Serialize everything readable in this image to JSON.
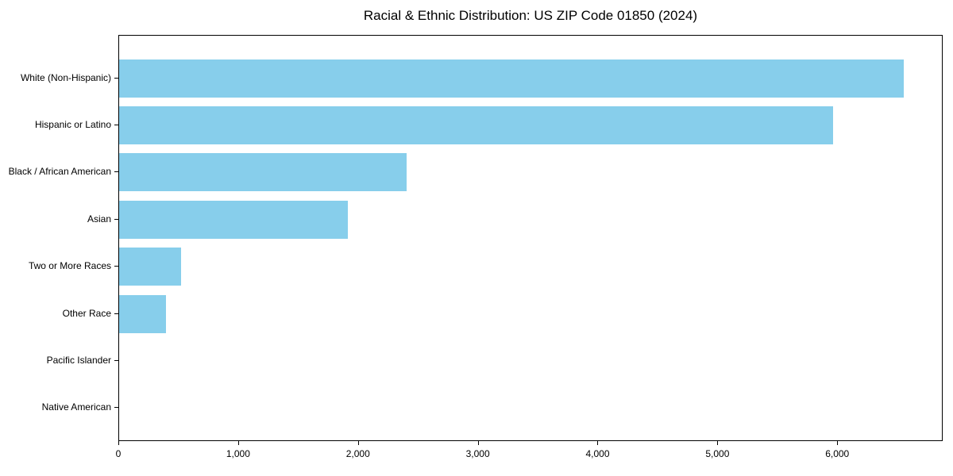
{
  "title": "Racial & Ethnic Distribution: US ZIP Code 01850 (2024)",
  "chart_data": {
    "type": "bar",
    "orientation": "horizontal",
    "title": "Racial & Ethnic Distribution: US ZIP Code 01850 (2024)",
    "xlabel": "",
    "ylabel": "",
    "categories": [
      "White (Non-Hispanic)",
      "Hispanic or Latino",
      "Black / African American",
      "Asian",
      "Two or More Races",
      "Other Race",
      "Pacific Islander",
      "Native American"
    ],
    "values": [
      6550,
      5960,
      2400,
      1910,
      520,
      390,
      0,
      0
    ],
    "xlim": [
      0,
      6880
    ],
    "x_ticks": [
      0,
      1000,
      2000,
      3000,
      4000,
      5000,
      6000
    ],
    "x_tick_labels": [
      "0",
      "1,000",
      "2,000",
      "3,000",
      "4,000",
      "5,000",
      "6,000"
    ],
    "bar_color": "#87CEEB",
    "background_color": "#ffffff",
    "grid": false,
    "legend": "none"
  }
}
